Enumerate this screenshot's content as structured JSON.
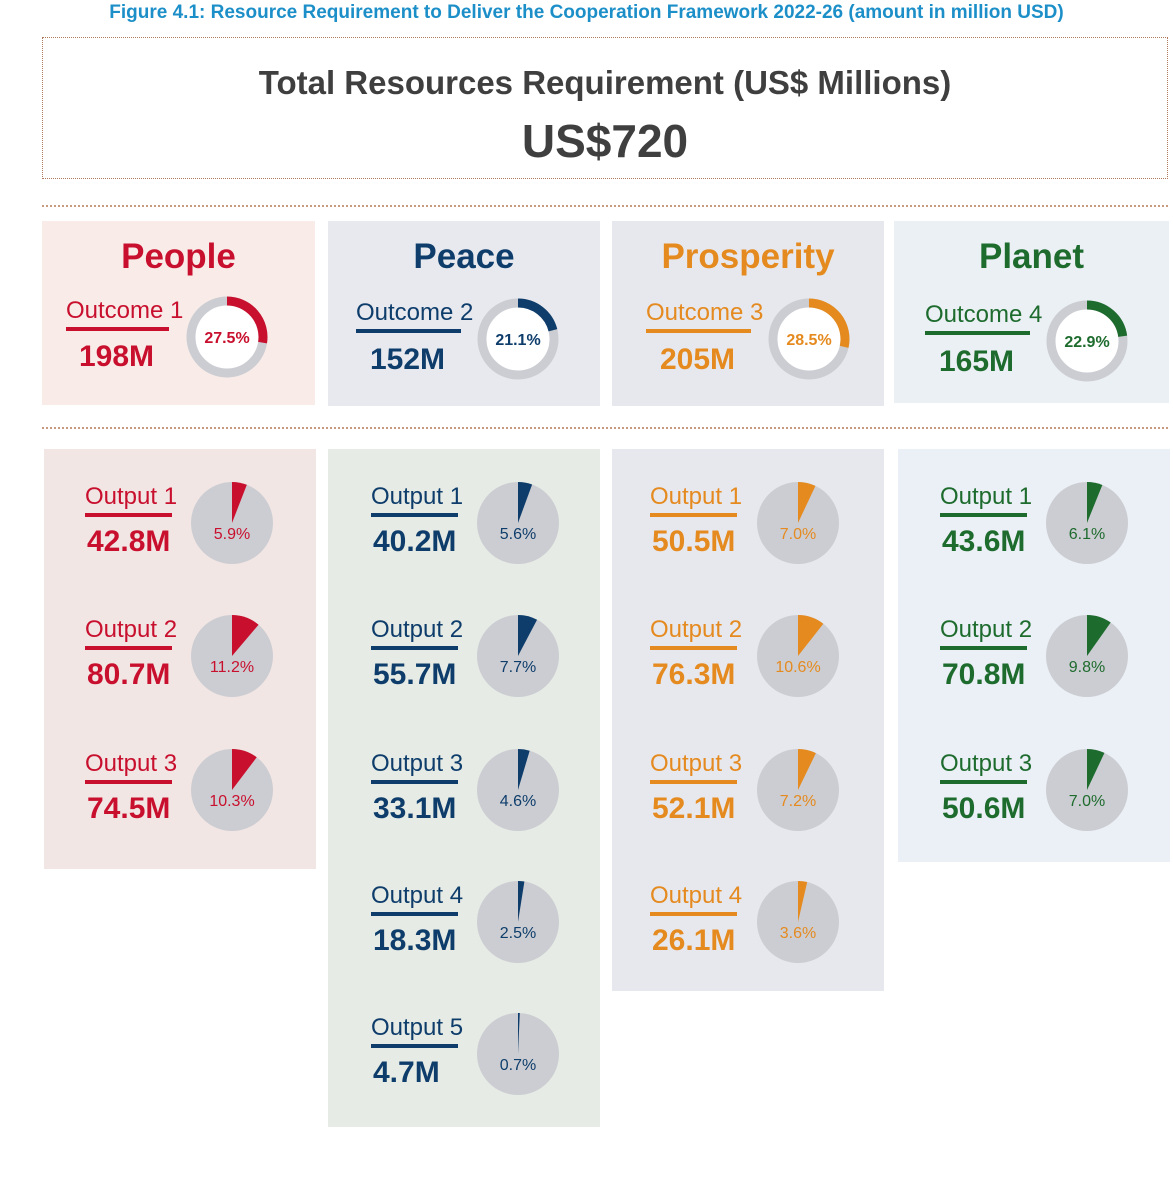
{
  "figure_title": "Figure 4.1: Resource Requirement to Deliver the Cooperation Framework 2022-26 (amount in million USD)",
  "total": {
    "label": "Total Resources Requirement (US$ Millions)",
    "value": "US$720"
  },
  "chart_data": {
    "type": "pie",
    "unit": "million USD",
    "total_million_usd": 720,
    "pillars": [
      {
        "name": "People",
        "color": "#c8102e",
        "panel_bg": "#f9ece8",
        "outputs_bg": "#f2e6e4",
        "outcome": {
          "label": "Outcome 1",
          "value_label": "198M",
          "value": 198,
          "percent": 27.5,
          "percent_label": "27.5%"
        },
        "outputs": [
          {
            "label": "Output 1",
            "value_label": "42.8M",
            "value": 42.8,
            "percent": 5.9,
            "percent_label": "5.9%"
          },
          {
            "label": "Output 2",
            "value_label": "80.7M",
            "value": 80.7,
            "percent": 11.2,
            "percent_label": "11.2%"
          },
          {
            "label": "Output 3",
            "value_label": "74.5M",
            "value": 74.5,
            "percent": 10.3,
            "percent_label": "10.3%"
          }
        ]
      },
      {
        "name": "Peace",
        "color": "#0e3d6b",
        "panel_bg": "#e7e9ef",
        "outputs_bg": "#e6ebe5",
        "outcome": {
          "label": "Outcome 2",
          "value_label": "152M",
          "value": 152,
          "percent": 21.1,
          "percent_label": "21.1%"
        },
        "outputs": [
          {
            "label": "Output 1",
            "value_label": "40.2M",
            "value": 40.2,
            "percent": 5.6,
            "percent_label": "5.6%"
          },
          {
            "label": "Output 2",
            "value_label": "55.7M",
            "value": 55.7,
            "percent": 7.7,
            "percent_label": "7.7%"
          },
          {
            "label": "Output 3",
            "value_label": "33.1M",
            "value": 33.1,
            "percent": 4.6,
            "percent_label": "4.6%"
          },
          {
            "label": "Output 4",
            "value_label": "18.3M",
            "value": 18.3,
            "percent": 2.5,
            "percent_label": "2.5%"
          },
          {
            "label": "Output 5",
            "value_label": "4.7M",
            "value": 4.7,
            "percent": 0.7,
            "percent_label": "0.7%"
          }
        ]
      },
      {
        "name": "Prosperity",
        "color": "#e58a1f",
        "panel_bg": "#e6e8ee",
        "outputs_bg": "#e6e8ee",
        "outcome": {
          "label": "Outcome 3",
          "value_label": "205M",
          "value": 205,
          "percent": 28.5,
          "percent_label": "28.5%"
        },
        "outputs": [
          {
            "label": "Output 1",
            "value_label": "50.5M",
            "value": 50.5,
            "percent": 7.0,
            "percent_label": "7.0%"
          },
          {
            "label": "Output 2",
            "value_label": "76.3M",
            "value": 76.3,
            "percent": 10.6,
            "percent_label": "10.6%"
          },
          {
            "label": "Output 3",
            "value_label": "52.1M",
            "value": 52.1,
            "percent": 7.2,
            "percent_label": "7.2%"
          },
          {
            "label": "Output 4",
            "value_label": "26.1M",
            "value": 26.1,
            "percent": 3.6,
            "percent_label": "3.6%"
          }
        ]
      },
      {
        "name": "Planet",
        "color": "#1e6b2e",
        "panel_bg": "#eaf0f4",
        "outputs_bg": "#eaf0f6",
        "outcome": {
          "label": "Outcome 4",
          "value_label": "165M",
          "value": 165,
          "percent": 22.9,
          "percent_label": "22.9%"
        },
        "outputs": [
          {
            "label": "Output 1",
            "value_label": "43.6M",
            "value": 43.6,
            "percent": 6.1,
            "percent_label": "6.1%"
          },
          {
            "label": "Output 2",
            "value_label": "70.8M",
            "value": 70.8,
            "percent": 9.8,
            "percent_label": "9.8%"
          },
          {
            "label": "Output 3",
            "value_label": "50.6M",
            "value": 50.6,
            "percent": 7.0,
            "percent_label": "7.0%"
          }
        ]
      }
    ],
    "pie_background_color": "#cccdd2"
  }
}
